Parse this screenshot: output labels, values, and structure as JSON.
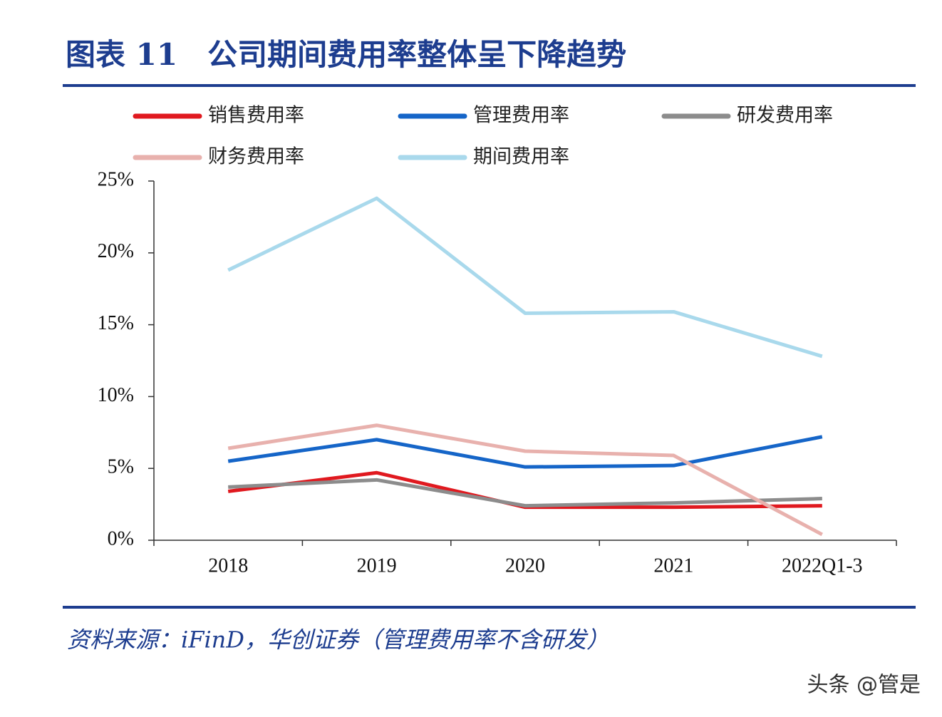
{
  "chart_data": {
    "type": "line",
    "title": "图表 11　公司期间费用率整体呈下降趋势",
    "categories": [
      "2018",
      "2019",
      "2020",
      "2021",
      "2022Q1-3"
    ],
    "series": [
      {
        "name": "销售费用率",
        "color": "#e0191f",
        "values": [
          3.4,
          4.7,
          2.3,
          2.3,
          2.4
        ]
      },
      {
        "name": "管理费用率",
        "color": "#1565c8",
        "values": [
          5.5,
          7.0,
          5.1,
          5.2,
          7.2
        ]
      },
      {
        "name": "研发费用率",
        "color": "#8c8c8c",
        "values": [
          3.7,
          4.2,
          2.4,
          2.6,
          2.9
        ]
      },
      {
        "name": "财务费用率",
        "color": "#e8b1ad",
        "values": [
          6.4,
          8.0,
          6.2,
          5.9,
          0.4
        ]
      },
      {
        "name": "期间费用率",
        "color": "#a9d9ec",
        "values": [
          18.8,
          23.8,
          15.8,
          15.9,
          12.8
        ]
      }
    ],
    "ylim": [
      0,
      25
    ],
    "yticks": [
      {
        "value": 0,
        "label": "0%"
      },
      {
        "value": 5,
        "label": "5%"
      },
      {
        "value": 10,
        "label": "10%"
      },
      {
        "value": 15,
        "label": "15%"
      },
      {
        "value": 20,
        "label": "20%"
      },
      {
        "value": 25,
        "label": "25%"
      }
    ]
  },
  "source": "资料来源：iFinD，华创证券（管理费用率不含研发）",
  "watermark": "头条 @管是"
}
